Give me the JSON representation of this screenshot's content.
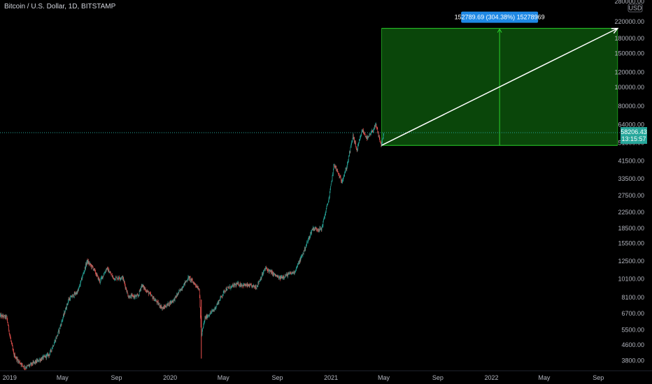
{
  "header": {
    "symbol": "Bitcoin / U.S. Dollar, 1D, BITSTAMP"
  },
  "currency_badge": "USD",
  "last_price": {
    "value": "58206.43",
    "countdown": "13:15:57"
  },
  "measurement": {
    "label": "152789.69 (304.38%) 15278969"
  },
  "colors": {
    "background": "#000000",
    "up": "#26a69a",
    "down": "#ef5350",
    "projection_fill": "#0b4a0b",
    "projection_border": "#2bd02b",
    "label_bg": "#1e88e5",
    "axis_text": "#b2b5be"
  },
  "chart_data": {
    "type": "candlestick",
    "y_scale": "log",
    "ylim": [
      3400,
      280000
    ],
    "x_range": [
      "2018-12-10",
      "2022-10-20"
    ],
    "y_tick_labels": [
      "280000.00",
      "220000.00",
      "180000.00",
      "150000.00",
      "120000.00",
      "100000.00",
      "80000.00",
      "64000.00",
      "51500.00",
      "41500.00",
      "33500.00",
      "27500.00",
      "22500.00",
      "18500.00",
      "15500.00",
      "12500.00",
      "10100.00",
      "8100.00",
      "6700.00",
      "5500.00",
      "4600.00",
      "3800.00"
    ],
    "x_tick_labels": [
      {
        "label": "2019",
        "date": "2019-01-01"
      },
      {
        "label": "May",
        "date": "2019-05-01"
      },
      {
        "label": "Sep",
        "date": "2019-09-01"
      },
      {
        "label": "2020",
        "date": "2020-01-01"
      },
      {
        "label": "May",
        "date": "2020-05-01"
      },
      {
        "label": "Sep",
        "date": "2020-09-01"
      },
      {
        "label": "2021",
        "date": "2021-01-01"
      },
      {
        "label": "May",
        "date": "2021-05-01"
      },
      {
        "label": "Sep",
        "date": "2021-09-01"
      },
      {
        "label": "2022",
        "date": "2022-01-01"
      },
      {
        "label": "May",
        "date": "2022-05-01"
      },
      {
        "label": "Sep",
        "date": "2022-09-01"
      }
    ],
    "price_path": [
      {
        "date": "2018-12-10",
        "price": 6500
      },
      {
        "date": "2018-12-25",
        "price": 6400
      },
      {
        "date": "2019-01-01",
        "price": 5200
      },
      {
        "date": "2019-01-10",
        "price": 4100
      },
      {
        "date": "2019-01-20",
        "price": 3800
      },
      {
        "date": "2019-02-05",
        "price": 3500
      },
      {
        "date": "2019-02-25",
        "price": 3700
      },
      {
        "date": "2019-03-15",
        "price": 3900
      },
      {
        "date": "2019-04-01",
        "price": 4100
      },
      {
        "date": "2019-04-20",
        "price": 5200
      },
      {
        "date": "2019-05-15",
        "price": 7900
      },
      {
        "date": "2019-06-05",
        "price": 8700
      },
      {
        "date": "2019-06-26",
        "price": 12500
      },
      {
        "date": "2019-07-10",
        "price": 11500
      },
      {
        "date": "2019-07-25",
        "price": 9800
      },
      {
        "date": "2019-08-10",
        "price": 11500
      },
      {
        "date": "2019-08-25",
        "price": 10200
      },
      {
        "date": "2019-09-15",
        "price": 10300
      },
      {
        "date": "2019-09-28",
        "price": 8200
      },
      {
        "date": "2019-10-20",
        "price": 8200
      },
      {
        "date": "2019-10-28",
        "price": 9400
      },
      {
        "date": "2019-11-20",
        "price": 8200
      },
      {
        "date": "2019-12-15",
        "price": 7100
      },
      {
        "date": "2020-01-10",
        "price": 7900
      },
      {
        "date": "2020-02-12",
        "price": 10300
      },
      {
        "date": "2020-03-07",
        "price": 9000
      },
      {
        "date": "2020-03-12",
        "price": 5100
      },
      {
        "date": "2020-03-20",
        "price": 6300
      },
      {
        "date": "2020-04-10",
        "price": 7000
      },
      {
        "date": "2020-05-05",
        "price": 8900
      },
      {
        "date": "2020-06-01",
        "price": 9500
      },
      {
        "date": "2020-07-15",
        "price": 9200
      },
      {
        "date": "2020-08-05",
        "price": 11500
      },
      {
        "date": "2020-09-05",
        "price": 10200
      },
      {
        "date": "2020-10-10",
        "price": 11000
      },
      {
        "date": "2020-10-28",
        "price": 13500
      },
      {
        "date": "2020-11-20",
        "price": 18500
      },
      {
        "date": "2020-12-10",
        "price": 18300
      },
      {
        "date": "2020-12-28",
        "price": 27000
      },
      {
        "date": "2021-01-08",
        "price": 40000
      },
      {
        "date": "2021-01-25",
        "price": 32500
      },
      {
        "date": "2021-02-05",
        "price": 38000
      },
      {
        "date": "2021-02-20",
        "price": 56000
      },
      {
        "date": "2021-03-01",
        "price": 47000
      },
      {
        "date": "2021-03-13",
        "price": 60000
      },
      {
        "date": "2021-03-25",
        "price": 54000
      },
      {
        "date": "2021-04-13",
        "price": 63500
      },
      {
        "date": "2021-04-25",
        "price": 50000
      },
      {
        "date": "2021-05-02",
        "price": 58206
      }
    ],
    "projection": {
      "start_date": "2021-04-26",
      "end_date": "2022-10-15",
      "start_price": 50000,
      "end_price": 202800,
      "change": 152789.69,
      "change_pct": 304.38
    },
    "last_price": 58206.43
  }
}
